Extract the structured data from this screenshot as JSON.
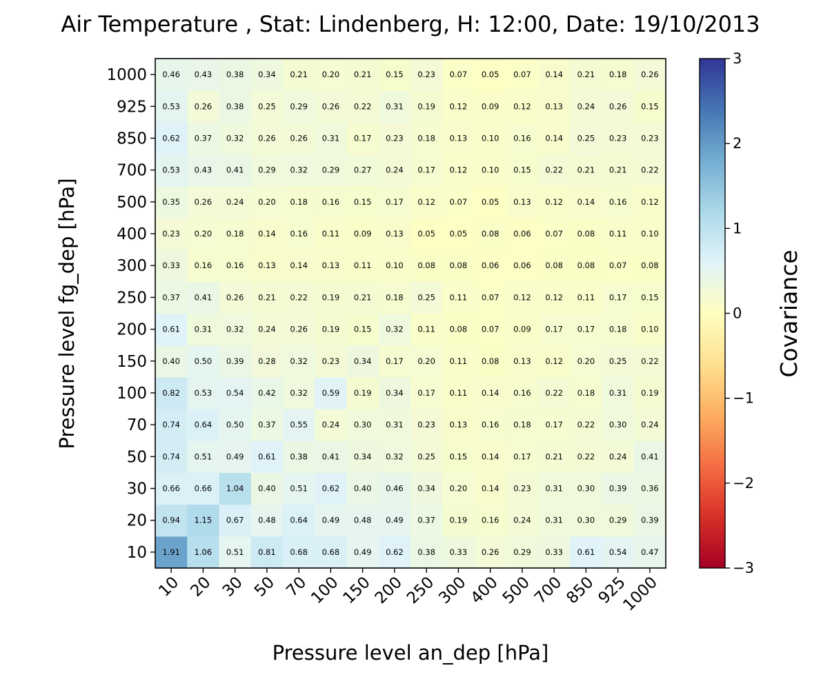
{
  "chart_data": {
    "type": "heatmap",
    "title": "Air Temperature , Stat: Lindenberg, H: 12:00, Date: 19/10/2013",
    "xlabel": "Pressure level an_dep [hPa]",
    "ylabel": "Pressure level fg_dep [hPa]",
    "x_categories": [
      "10",
      "20",
      "30",
      "50",
      "70",
      "100",
      "150",
      "200",
      "250",
      "300",
      "400",
      "500",
      "700",
      "850",
      "925",
      "1000"
    ],
    "y_categories": [
      "10",
      "20",
      "30",
      "50",
      "70",
      "100",
      "150",
      "200",
      "250",
      "300",
      "400",
      "500",
      "700",
      "850",
      "925",
      "1000"
    ],
    "values": [
      [
        1.91,
        1.06,
        0.51,
        0.81,
        0.68,
        0.68,
        0.49,
        0.62,
        0.38,
        0.33,
        0.26,
        0.29,
        0.33,
        0.61,
        0.54,
        0.47
      ],
      [
        0.94,
        1.15,
        0.67,
        0.48,
        0.64,
        0.49,
        0.48,
        0.49,
        0.37,
        0.19,
        0.16,
        0.24,
        0.31,
        0.3,
        0.29,
        0.39
      ],
      [
        0.66,
        0.66,
        1.04,
        0.4,
        0.51,
        0.62,
        0.4,
        0.46,
        0.34,
        0.2,
        0.14,
        0.23,
        0.31,
        0.3,
        0.39,
        0.36
      ],
      [
        0.74,
        0.51,
        0.49,
        0.61,
        0.38,
        0.41,
        0.34,
        0.32,
        0.25,
        0.15,
        0.14,
        0.17,
        0.21,
        0.22,
        0.24,
        0.41
      ],
      [
        0.74,
        0.64,
        0.5,
        0.37,
        0.55,
        0.24,
        0.3,
        0.31,
        0.23,
        0.13,
        0.16,
        0.18,
        0.17,
        0.22,
        0.3,
        0.24
      ],
      [
        0.82,
        0.53,
        0.54,
        0.42,
        0.32,
        0.59,
        0.19,
        0.34,
        0.17,
        0.11,
        0.14,
        0.16,
        0.22,
        0.18,
        0.31,
        0.19
      ],
      [
        0.4,
        0.5,
        0.39,
        0.28,
        0.32,
        0.23,
        0.34,
        0.17,
        0.2,
        0.11,
        0.08,
        0.13,
        0.12,
        0.2,
        0.25,
        0.22
      ],
      [
        0.61,
        0.31,
        0.32,
        0.24,
        0.26,
        0.19,
        0.15,
        0.32,
        0.11,
        0.08,
        0.07,
        0.09,
        0.17,
        0.17,
        0.18,
        0.1
      ],
      [
        0.37,
        0.41,
        0.26,
        0.21,
        0.22,
        0.19,
        0.21,
        0.18,
        0.25,
        0.11,
        0.07,
        0.12,
        0.12,
        0.11,
        0.17,
        0.15
      ],
      [
        0.33,
        0.16,
        0.16,
        0.13,
        0.14,
        0.13,
        0.11,
        0.1,
        0.08,
        0.08,
        0.06,
        0.06,
        0.08,
        0.08,
        0.07,
        0.08
      ],
      [
        0.23,
        0.2,
        0.18,
        0.14,
        0.16,
        0.11,
        0.09,
        0.13,
        0.05,
        0.05,
        0.08,
        0.06,
        0.07,
        0.08,
        0.11,
        0.1
      ],
      [
        0.35,
        0.26,
        0.24,
        0.2,
        0.18,
        0.16,
        0.15,
        0.17,
        0.12,
        0.07,
        0.05,
        0.13,
        0.12,
        0.14,
        0.16,
        0.12
      ],
      [
        0.53,
        0.43,
        0.41,
        0.29,
        0.32,
        0.29,
        0.27,
        0.24,
        0.17,
        0.12,
        0.1,
        0.15,
        0.22,
        0.21,
        0.21,
        0.22
      ],
      [
        0.62,
        0.37,
        0.32,
        0.26,
        0.26,
        0.31,
        0.17,
        0.23,
        0.18,
        0.13,
        0.1,
        0.16,
        0.14,
        0.25,
        0.23,
        0.23
      ],
      [
        0.53,
        0.26,
        0.38,
        0.25,
        0.29,
        0.26,
        0.22,
        0.31,
        0.19,
        0.12,
        0.09,
        0.12,
        0.13,
        0.24,
        0.26,
        0.15
      ],
      [
        0.46,
        0.43,
        0.38,
        0.34,
        0.21,
        0.2,
        0.21,
        0.15,
        0.23,
        0.07,
        0.05,
        0.07,
        0.14,
        0.21,
        0.18,
        0.26
      ]
    ],
    "colorbar": {
      "label": "Covariance",
      "range": [
        -3,
        3
      ],
      "ticks": [
        -3,
        -2,
        -1,
        0,
        1,
        2,
        3
      ],
      "tick_labels": [
        "−3",
        "−2",
        "−1",
        "0",
        "1",
        "2",
        "3"
      ],
      "colormap": "RdYlBu",
      "colormap_stops": [
        "#a50026",
        "#d73027",
        "#f46d43",
        "#fdae61",
        "#fee090",
        "#ffffbf",
        "#e0f3f8",
        "#abd9e9",
        "#74add1",
        "#4575b4",
        "#313695"
      ]
    },
    "grid": false,
    "legend": "colorbar-right"
  }
}
